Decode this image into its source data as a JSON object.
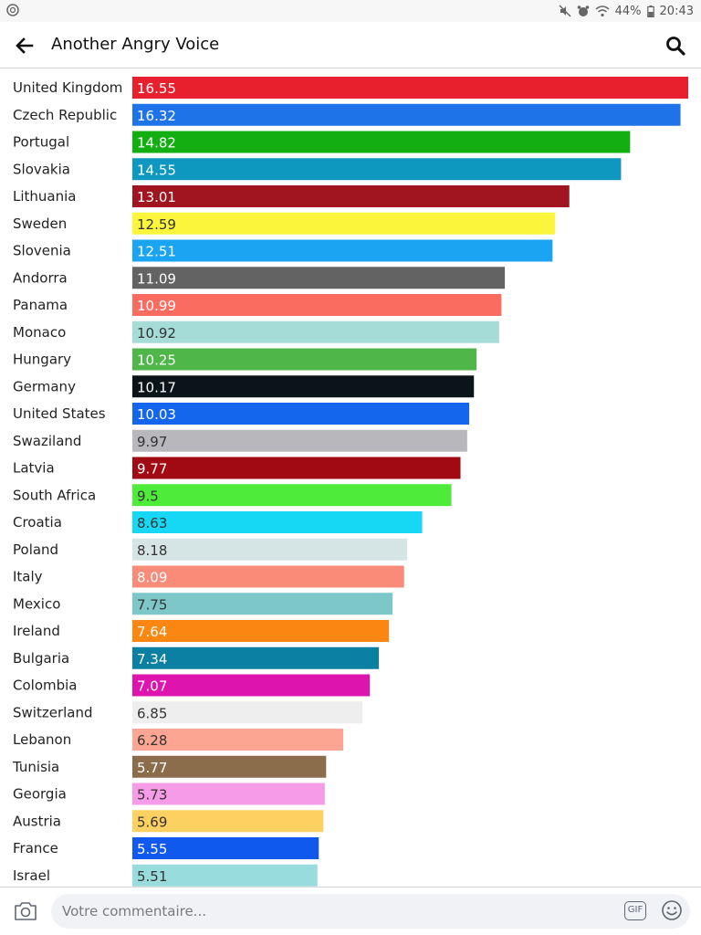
{
  "status_bar": {
    "battery": "44%",
    "time": "20:43"
  },
  "header": {
    "title": "Another Angry Voice"
  },
  "comment": {
    "placeholder": "Votre commentaire...",
    "gif_label": "GIF"
  },
  "icons": {
    "back": "back-arrow-icon",
    "search": "search-icon",
    "camera": "camera-icon",
    "gif": "gif-icon",
    "emoji": "emoji-icon"
  },
  "chart_data": {
    "type": "bar",
    "orientation": "horizontal",
    "title": "",
    "xlabel": "",
    "ylabel": "",
    "xlim": [
      0,
      16.55
    ],
    "grid": false,
    "categories": [
      "United Kingdom",
      "Czech Republic",
      "Portugal",
      "Slovakia",
      "Lithuania",
      "Sweden",
      "Slovenia",
      "Andorra",
      "Panama",
      "Monaco",
      "Hungary",
      "Germany",
      "United States",
      "Swaziland",
      "Latvia",
      "South Africa",
      "Croatia",
      "Poland",
      "Italy",
      "Mexico",
      "Ireland",
      "Bulgaria",
      "Colombia",
      "Switzerland",
      "Lebanon",
      "Tunisia",
      "Georgia",
      "Austria",
      "France",
      "Israel"
    ],
    "values": [
      16.55,
      16.32,
      14.82,
      14.55,
      13.01,
      12.59,
      12.51,
      11.09,
      10.99,
      10.92,
      10.25,
      10.17,
      10.03,
      9.97,
      9.77,
      9.5,
      8.63,
      8.18,
      8.09,
      7.75,
      7.64,
      7.34,
      7.07,
      6.85,
      6.28,
      5.77,
      5.73,
      5.69,
      5.55,
      5.51
    ],
    "value_labels": [
      "16.55",
      "16.32",
      "14.82",
      "14.55",
      "13.01",
      "12.59",
      "12.51",
      "11.09",
      "10.99",
      "10.92",
      "10.25",
      "10.17",
      "10.03",
      "9.97",
      "9.77",
      "9.5",
      "8.63",
      "8.18",
      "8.09",
      "7.75",
      "7.64",
      "7.34",
      "7.07",
      "6.85",
      "6.28",
      "5.77",
      "5.73",
      "5.69",
      "5.55",
      "5.51"
    ],
    "colors": [
      "#e8202e",
      "#1e73e8",
      "#12ae12",
      "#0f98bf",
      "#a0151f",
      "#fbf53b",
      "#1aa4f2",
      "#636363",
      "#fa6c5f",
      "#a5dcd8",
      "#4fb64a",
      "#0b1418",
      "#1467ec",
      "#b8b8bc",
      "#a10a12",
      "#4eeb3b",
      "#16d8f4",
      "#d5e4e4",
      "#f98b78",
      "#7ec7c9",
      "#fb8712",
      "#0b80a3",
      "#dd15ae",
      "#eeeeee",
      "#fca592",
      "#8b6d4c",
      "#f59be8",
      "#fdd062",
      "#1059ef",
      "#98dcde"
    ],
    "label_colors": [
      "#ffffff",
      "#ffffff",
      "#ffffff",
      "#ffffff",
      "#ffffff",
      "#333333",
      "#ffffff",
      "#ffffff",
      "#ffffff",
      "#333333",
      "#ffffff",
      "#ffffff",
      "#ffffff",
      "#333333",
      "#ffffff",
      "#333333",
      "#333333",
      "#333333",
      "#ffffff",
      "#333333",
      "#ffffff",
      "#ffffff",
      "#ffffff",
      "#333333",
      "#333333",
      "#ffffff",
      "#333333",
      "#333333",
      "#ffffff",
      "#333333"
    ]
  }
}
